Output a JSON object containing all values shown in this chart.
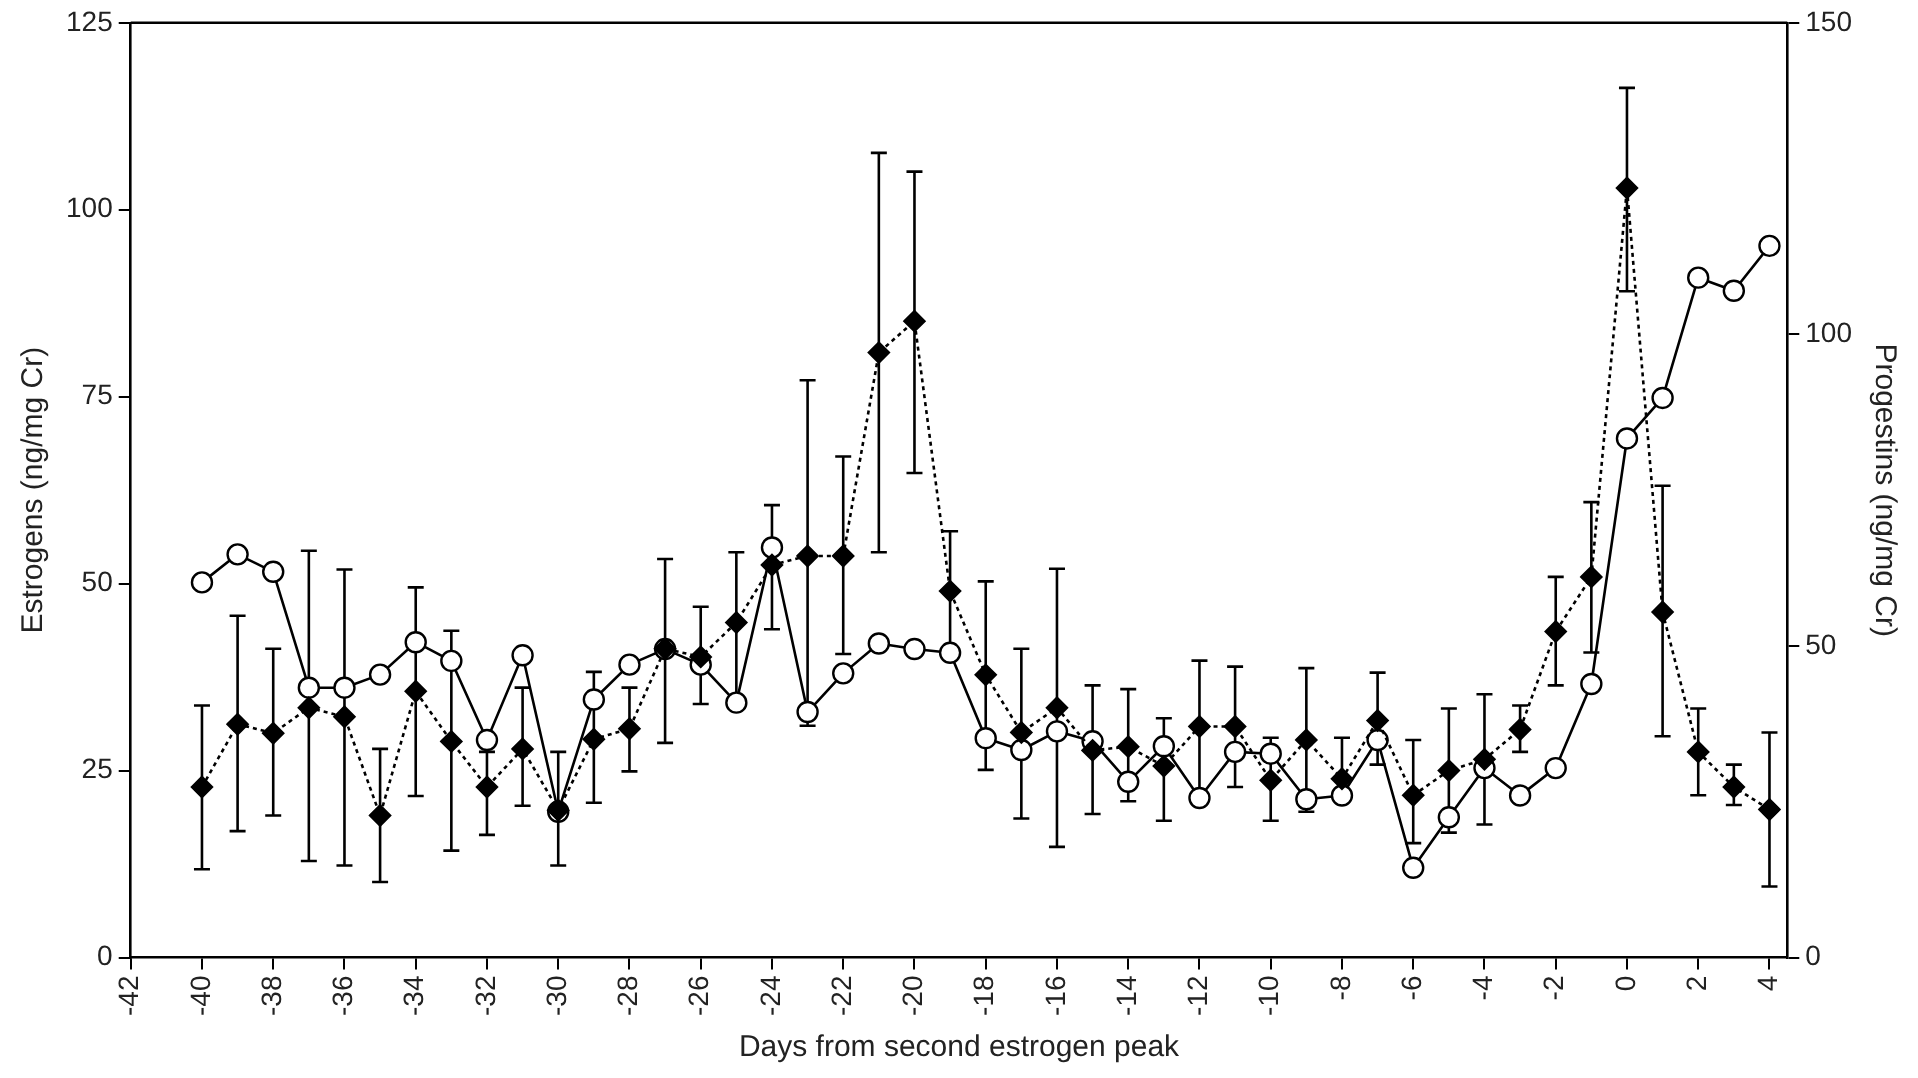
{
  "chart_data": {
    "type": "line",
    "xlabel": "Days from second estrogen peak",
    "ylabel": "Estrogens (ng/mg Cr)",
    "y2label": "Progestins (ng/mg Cr)",
    "x": [
      -40,
      -39,
      -38,
      -37,
      -36,
      -35,
      -34,
      -33,
      -32,
      -31,
      -30,
      -29,
      -28,
      -27,
      -26,
      -25,
      -24,
      -23,
      -22,
      -21,
      -20,
      -19,
      -18,
      -17,
      -16,
      -15,
      -14,
      -13,
      -12,
      -11,
      -10,
      -9,
      -8,
      -7,
      -6,
      -5,
      -4,
      -3,
      -2,
      -1,
      0,
      1,
      2,
      3,
      4
    ],
    "xlim": [
      -42,
      4.5
    ],
    "xticks": [
      -42,
      -40,
      -38,
      -36,
      -34,
      -32,
      -30,
      -28,
      -26,
      -24,
      -22,
      -20,
      -18,
      -16,
      -14,
      -12,
      -10,
      -8,
      -6,
      -4,
      -2,
      0,
      2,
      4
    ],
    "ylim": [
      0,
      125
    ],
    "yticks": [
      0,
      25,
      50,
      75,
      100,
      125
    ],
    "y2lim": [
      0,
      150
    ],
    "y2ticks": [
      0,
      50,
      100,
      150
    ],
    "grid": false,
    "legend": false,
    "series": [
      {
        "color": "#000000",
        "marker": "diamond",
        "line_style": "dotted",
        "values": [
          22.8,
          31.2,
          30.0,
          33.4,
          32.2,
          19.0,
          35.6,
          28.9,
          22.8,
          27.9,
          19.7,
          29.2,
          30.6,
          41.3,
          40.2,
          44.8,
          52.5,
          53.7,
          53.7,
          80.9,
          85.1,
          49.0,
          37.8,
          30.1,
          33.4,
          27.7,
          28.2,
          25.6,
          30.9,
          30.9,
          23.7,
          29.1,
          23.9,
          31.7,
          21.7,
          25.0,
          26.5,
          30.5,
          43.6,
          50.9,
          102.9,
          46.2,
          27.5,
          22.8,
          19.8
        ],
        "errors": [
          [
            11.8,
            33.7
          ],
          [
            16.9,
            45.7
          ],
          [
            19.0,
            41.3
          ],
          [
            12.9,
            54.4
          ],
          [
            12.3,
            51.9
          ],
          [
            10.1,
            27.9
          ],
          [
            21.6,
            49.5
          ],
          [
            14.3,
            43.7
          ],
          [
            16.4,
            27.5
          ],
          [
            20.3,
            36.1
          ],
          [
            12.3,
            27.5
          ],
          [
            20.7,
            38.2
          ],
          [
            24.9,
            36.1
          ],
          [
            28.7,
            53.3
          ],
          [
            33.9,
            46.9
          ],
          [
            34.0,
            54.2
          ],
          [
            43.9,
            60.5
          ],
          [
            31.0,
            77.2
          ],
          [
            40.6,
            67.0
          ],
          [
            54.2,
            107.6
          ],
          [
            64.8,
            105.1
          ],
          [
            41.0,
            57.0
          ],
          [
            25.1,
            50.3
          ],
          [
            18.6,
            41.3
          ],
          [
            14.8,
            52.0
          ],
          [
            19.2,
            36.4
          ],
          [
            20.9,
            35.9
          ],
          [
            18.3,
            32.0
          ],
          [
            21.4,
            39.7
          ],
          [
            22.8,
            38.9
          ],
          [
            18.3,
            29.4
          ],
          [
            19.5,
            38.7
          ],
          [
            21.6,
            29.4
          ],
          [
            25.8,
            38.1
          ],
          [
            15.3,
            29.1
          ],
          [
            16.7,
            33.3
          ],
          [
            17.8,
            35.2
          ],
          [
            27.5,
            33.7
          ],
          [
            36.4,
            50.9
          ],
          [
            40.8,
            60.9
          ],
          [
            89.1,
            116.3
          ],
          [
            29.6,
            63.1
          ],
          [
            21.7,
            33.3
          ],
          [
            20.4,
            25.8
          ],
          [
            9.5,
            30.1
          ]
        ]
      },
      {
        "color": "#000000",
        "marker": "circle",
        "line_style": "solid",
        "axis": "y2",
        "values": [
          60.2,
          64.7,
          61.9,
          43.3,
          43.3,
          45.4,
          50.6,
          47.6,
          34.9,
          48.5,
          23.4,
          41.4,
          47.0,
          49.5,
          47.0,
          40.9,
          65.8,
          39.4,
          45.6,
          50.4,
          49.5,
          48.9,
          35.2,
          33.3,
          36.3,
          34.7,
          28.2,
          33.9,
          25.6,
          33.0,
          32.7,
          25.4,
          26.0,
          34.9,
          14.4,
          22.5,
          30.4,
          26.0,
          30.4,
          43.9,
          83.3,
          89.8,
          109.1,
          107.0,
          114.2
        ]
      }
    ]
  }
}
